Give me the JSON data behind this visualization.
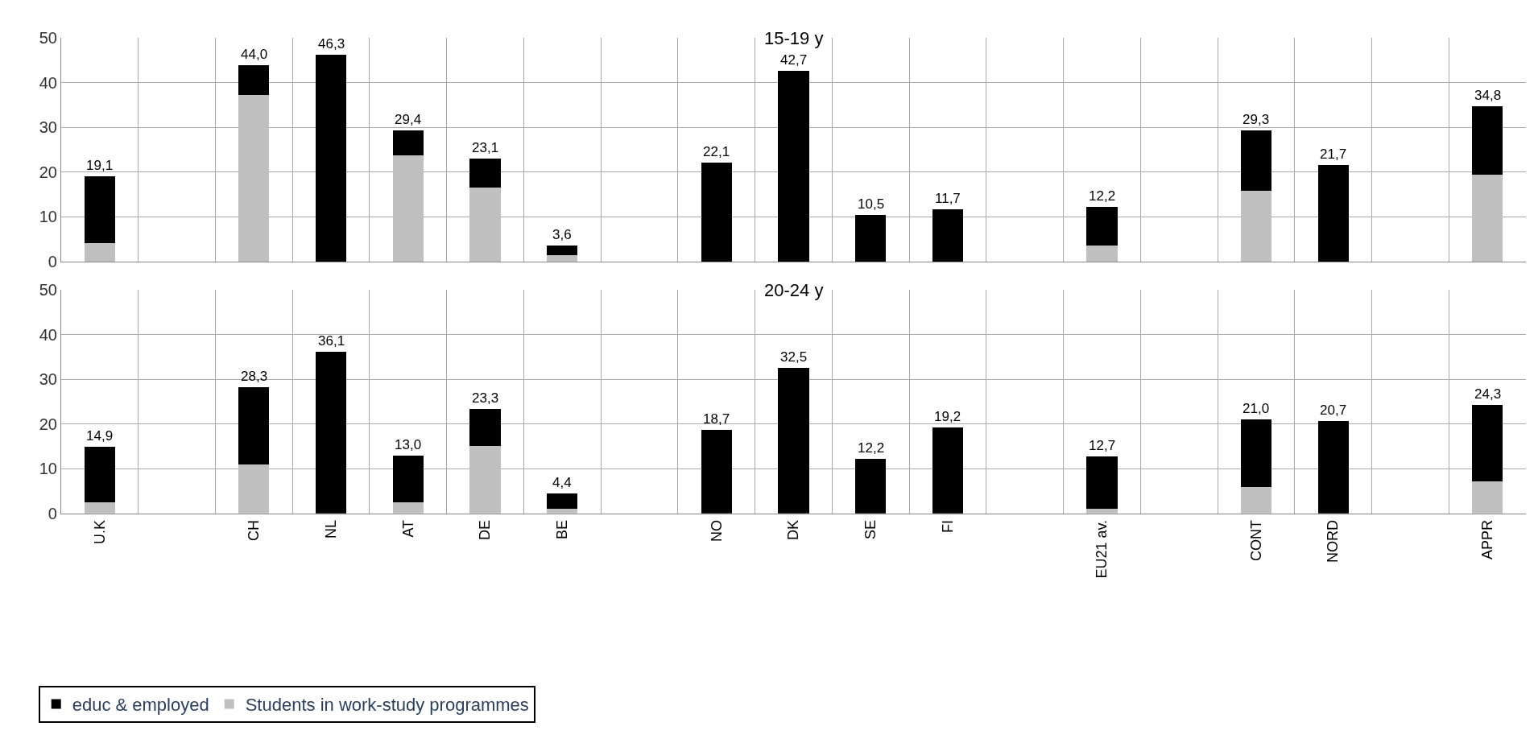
{
  "chart_data": [
    {
      "type": "bar",
      "title": "15-19 y",
      "stacked": true,
      "categories": [
        "U.K",
        null,
        "CH",
        "NL",
        "AT",
        "DE",
        "BE",
        null,
        "NO",
        "DK",
        "SE",
        "FI",
        null,
        "EU21 av.",
        null,
        "CONT",
        "NORD",
        null,
        "APPR"
      ],
      "series": [
        {
          "name": "Students in work-study programmes",
          "color": "#c0c0c0",
          "values": [
            4.2,
            null,
            37.3,
            0,
            23.7,
            16.5,
            1.5,
            null,
            0,
            0,
            0,
            0,
            null,
            3.6,
            null,
            15.9,
            0,
            null,
            19.5
          ]
        },
        {
          "name": "educ & employed",
          "color": "#000000",
          "values": [
            14.9,
            null,
            6.7,
            46.3,
            5.7,
            6.6,
            2.1,
            null,
            22.1,
            42.7,
            10.5,
            11.7,
            null,
            8.6,
            null,
            13.4,
            21.7,
            null,
            15.3
          ]
        }
      ],
      "totals": [
        "19,1",
        null,
        "44,0",
        "46,3",
        "29,4",
        "23,1",
        "3,6",
        null,
        "22,1",
        "42,7",
        "10,5",
        "11,7",
        null,
        "12,2",
        null,
        "29,3",
        "21,7",
        null,
        "34,8"
      ],
      "ylim": [
        0,
        50
      ],
      "yticks": [
        0,
        10,
        20,
        30,
        40,
        50
      ],
      "grid": true,
      "legend": "bottom",
      "tick_labels": "y"
    },
    {
      "type": "bar",
      "title": "20-24 y",
      "stacked": true,
      "categories": [
        "U.K",
        null,
        "CH",
        "NL",
        "AT",
        "DE",
        "BE",
        null,
        "NO",
        "DK",
        "SE",
        "FI",
        null,
        "EU21 av.",
        null,
        "CONT",
        "NORD",
        null,
        "APPR"
      ],
      "series": [
        {
          "name": "Students in work-study programmes",
          "color": "#c0c0c0",
          "values": [
            2.5,
            null,
            10.9,
            0,
            2.5,
            15.1,
            1.1,
            null,
            0,
            0,
            0,
            0,
            null,
            1.0,
            null,
            5.9,
            0,
            null,
            7.1
          ]
        },
        {
          "name": "educ & employed",
          "color": "#000000",
          "values": [
            12.4,
            null,
            17.4,
            36.1,
            10.5,
            8.2,
            3.3,
            null,
            18.7,
            32.5,
            12.2,
            19.2,
            null,
            11.7,
            null,
            15.1,
            20.7,
            null,
            17.2
          ]
        }
      ],
      "totals": [
        "14,9",
        null,
        "28,3",
        "36,1",
        "13,0",
        "23,3",
        "4,4",
        null,
        "18,7",
        "32,5",
        "12,2",
        "19,2",
        null,
        "12,7",
        null,
        "21,0",
        "20,7",
        null,
        "24,3"
      ],
      "ylim": [
        0,
        50
      ],
      "yticks": [
        0,
        10,
        20,
        30,
        40,
        50
      ],
      "grid": true,
      "legend": "bottom"
    }
  ]
}
